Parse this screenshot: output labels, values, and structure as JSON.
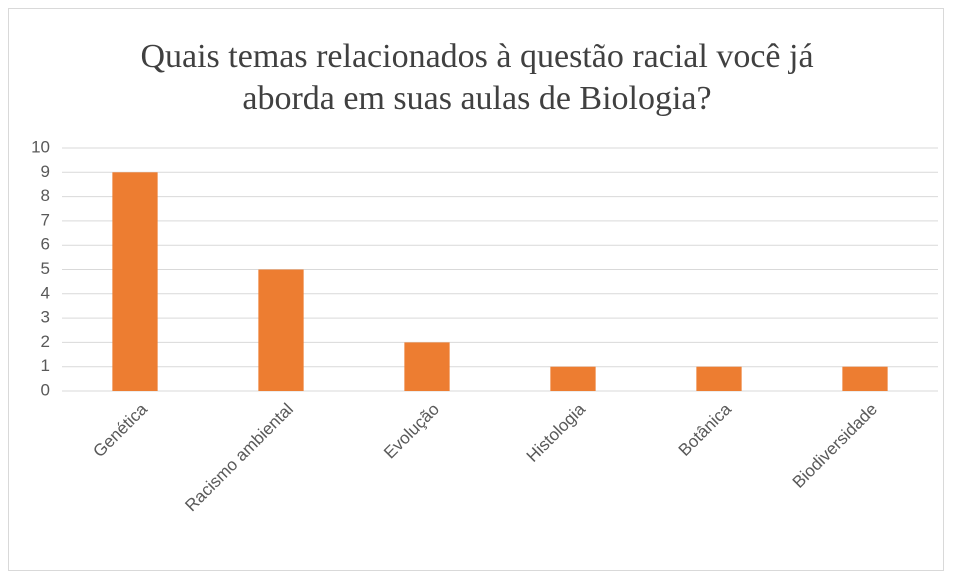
{
  "chart_data": {
    "type": "bar",
    "title": "Quais temas relacionados à questão racial você já aborda em suas aulas de Biologia?",
    "categories": [
      "Genética",
      "Racismo ambiental",
      "Evolução",
      "Histologia",
      "Botânica",
      "Biodiversidade"
    ],
    "values": [
      9,
      5,
      2,
      1,
      1,
      1
    ],
    "color": "#ed7d31",
    "ylim": [
      0,
      10
    ],
    "yticks": [
      0,
      1,
      2,
      3,
      4,
      5,
      6,
      7,
      8,
      9,
      10
    ],
    "grid": true
  }
}
